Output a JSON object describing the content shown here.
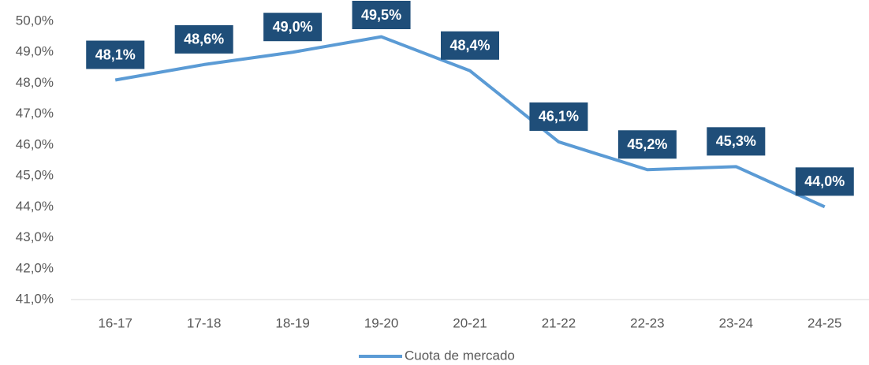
{
  "chart_data": {
    "type": "line",
    "categories": [
      "16-17",
      "17-18",
      "18-19",
      "19-20",
      "20-21",
      "21-22",
      "22-23",
      "23-24",
      "24-25"
    ],
    "series": [
      {
        "name": "Cuota de mercado",
        "color": "#5b9bd5",
        "values": [
          48.1,
          48.6,
          49.0,
          49.5,
          48.4,
          46.1,
          45.2,
          45.3,
          44.0
        ],
        "value_labels": [
          "48,1%",
          "48,6%",
          "49,0%",
          "49,5%",
          "48,4%",
          "46,1%",
          "45,2%",
          "45,3%",
          "44,0%"
        ]
      }
    ],
    "label_color": "#1f4e79",
    "ylim": [
      41,
      50
    ],
    "yticks": [
      {
        "value": 41,
        "label": "41,0%"
      },
      {
        "value": 42,
        "label": "42,0%"
      },
      {
        "value": 43,
        "label": "43,0%"
      },
      {
        "value": 44,
        "label": "44,0%"
      },
      {
        "value": 45,
        "label": "45,0%"
      },
      {
        "value": 46,
        "label": "46,0%"
      },
      {
        "value": 47,
        "label": "47,0%"
      },
      {
        "value": 48,
        "label": "48,0%"
      },
      {
        "value": 49,
        "label": "49,0%"
      },
      {
        "value": 50,
        "label": "50,0%"
      }
    ],
    "grid": false,
    "legend": "bottom"
  }
}
